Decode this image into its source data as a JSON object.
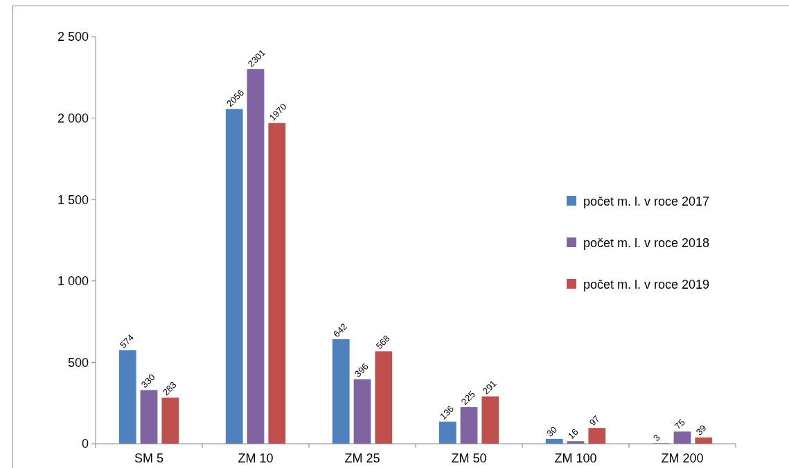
{
  "chart_data": {
    "type": "bar",
    "categories": [
      "SM 5",
      "ZM 10",
      "ZM 25",
      "ZM 50",
      "ZM 100",
      "ZM 200"
    ],
    "series": [
      {
        "name": "počet m. l. v roce 2017",
        "color": "#4f81bd",
        "values": [
          574,
          2056,
          642,
          136,
          30,
          3
        ]
      },
      {
        "name": "počet m. l. v roce 2018",
        "color": "#8064a2",
        "values": [
          330,
          2301,
          396,
          225,
          16,
          75
        ]
      },
      {
        "name": "počet m. l. v roce 2019",
        "color": "#c0504d",
        "values": [
          283,
          1970,
          568,
          291,
          97,
          39
        ]
      }
    ],
    "ylim": [
      0,
      2500
    ],
    "yticks": [
      {
        "value": 0,
        "label": "0"
      },
      {
        "value": 500,
        "label": "500"
      },
      {
        "value": 1000,
        "label": "1 000"
      },
      {
        "value": 1500,
        "label": "1 500"
      },
      {
        "value": 2000,
        "label": "2 000"
      },
      {
        "value": 2500,
        "label": "2 500"
      }
    ],
    "grid": false,
    "legend": "right",
    "data_labels": true
  }
}
